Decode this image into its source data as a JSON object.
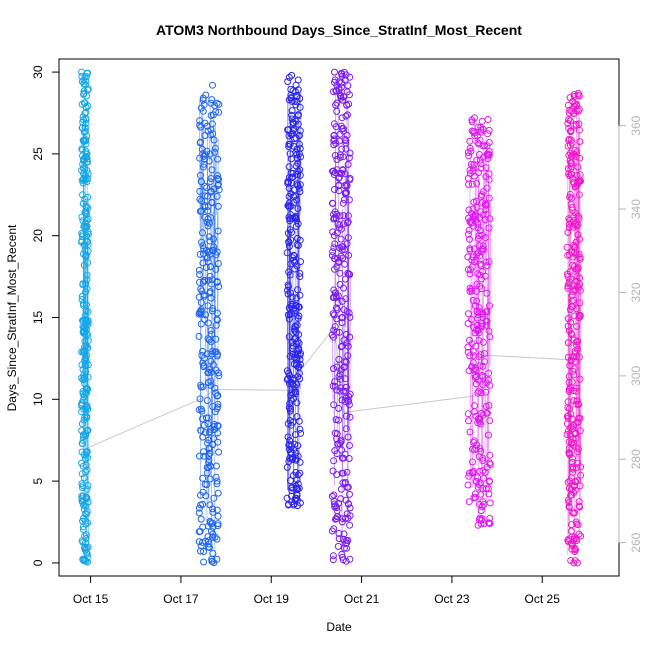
{
  "chart_data": {
    "type": "scatter",
    "title": "ATOM3 Northbound Days_Since_StratInf_Most_Recent",
    "xlabel": "Date",
    "ylabel": "Days_Since_StratInf_Most_Recent",
    "x_ticks": [
      "Oct 15",
      "Oct 17",
      "Oct 19",
      "Oct 21",
      "Oct 23",
      "Oct 25"
    ],
    "x_tick_values": [
      15,
      17,
      19,
      21,
      23,
      25
    ],
    "xlim": [
      14.3,
      26.7
    ],
    "y_ticks": [
      "0",
      "5",
      "10",
      "15",
      "20",
      "25",
      "30"
    ],
    "y_tick_values": [
      0,
      5,
      10,
      15,
      20,
      25,
      30
    ],
    "ylim": [
      -0.8,
      30.8
    ],
    "y2_ticks": [
      "260",
      "280",
      "300",
      "320",
      "340",
      "360"
    ],
    "y2_tick_values": [
      260,
      280,
      300,
      320,
      340,
      360
    ],
    "y2lim": [
      252,
      376
    ],
    "grid": false,
    "marker": "open circle",
    "color_scale": "cyan to blue to purple to magenta over time",
    "series": [
      {
        "x_range": [
          14.8,
          14.95
        ],
        "y_range": [
          0,
          30
        ],
        "color": "#15a6e8",
        "points": [
          [
            14.8,
            30
          ],
          [
            14.85,
            28.7
          ],
          [
            14.9,
            27.1
          ],
          [
            14.8,
            24
          ],
          [
            14.88,
            23.4
          ],
          [
            14.82,
            22.5
          ],
          [
            14.9,
            21.8
          ],
          [
            14.95,
            20.1
          ],
          [
            14.8,
            19.6
          ],
          [
            14.86,
            18.2
          ],
          [
            14.92,
            17.3
          ],
          [
            14.81,
            16.1
          ],
          [
            14.9,
            15.4
          ],
          [
            14.84,
            14.8
          ],
          [
            14.95,
            13.6
          ],
          [
            14.8,
            12.9
          ],
          [
            14.88,
            12.1
          ],
          [
            14.83,
            11.2
          ],
          [
            14.91,
            10.4
          ],
          [
            14.8,
            9.6
          ],
          [
            14.87,
            8.9
          ],
          [
            14.94,
            8.1
          ],
          [
            14.82,
            7.3
          ],
          [
            14.9,
            6.6
          ],
          [
            14.8,
            6.1
          ],
          [
            14.86,
            5.2
          ],
          [
            14.92,
            4.5
          ],
          [
            14.81,
            3.8
          ],
          [
            14.88,
            3
          ],
          [
            14.84,
            2.2
          ],
          [
            14.9,
            1.5
          ],
          [
            14.87,
            0.9
          ],
          [
            14.9,
            0.1
          ],
          [
            14.93,
            0.05
          ]
        ]
      },
      {
        "x_range": [
          17.4,
          17.85
        ],
        "y_range": [
          0,
          29.2
        ],
        "color": "#1e64f0",
        "points": [
          [
            17.45,
            27.8
          ],
          [
            17.55,
            28.6
          ],
          [
            17.7,
            29.2
          ],
          [
            17.8,
            28.1
          ],
          [
            17.6,
            26.4
          ],
          [
            17.75,
            25.1
          ],
          [
            17.5,
            24.2
          ],
          [
            17.65,
            23.3
          ],
          [
            17.8,
            22.4
          ],
          [
            17.45,
            21.5
          ],
          [
            17.6,
            20.6
          ],
          [
            17.72,
            19.8
          ],
          [
            17.5,
            18.9
          ],
          [
            17.66,
            18.1
          ],
          [
            17.8,
            17.2
          ],
          [
            17.52,
            16.3
          ],
          [
            17.7,
            15.4
          ],
          [
            17.45,
            14.6
          ],
          [
            17.6,
            13.7
          ],
          [
            17.78,
            12.9
          ],
          [
            17.5,
            12
          ],
          [
            17.66,
            11.1
          ],
          [
            17.8,
            10.2
          ],
          [
            17.45,
            9.4
          ],
          [
            17.6,
            8.5
          ],
          [
            17.72,
            7.6
          ],
          [
            17.5,
            6.8
          ],
          [
            17.65,
            5.9
          ],
          [
            17.8,
            5
          ],
          [
            17.55,
            4.1
          ],
          [
            17.7,
            3.3
          ],
          [
            17.82,
            2.4
          ],
          [
            17.6,
            1.6
          ],
          [
            17.5,
            0.7
          ],
          [
            17.7,
            0.1
          ]
        ]
      },
      {
        "x_range": [
          19.35,
          19.65
        ],
        "y_range": [
          3.5,
          29.8
        ],
        "color": "#2a24ee",
        "points": [
          [
            19.45,
            29.8
          ],
          [
            19.55,
            29.2
          ],
          [
            19.4,
            28.3
          ],
          [
            19.6,
            27.4
          ],
          [
            19.5,
            26.5
          ],
          [
            19.42,
            25.6
          ],
          [
            19.58,
            24.7
          ],
          [
            19.48,
            23.8
          ],
          [
            19.62,
            22.9
          ],
          [
            19.4,
            22
          ],
          [
            19.55,
            21.1
          ],
          [
            19.45,
            20.2
          ],
          [
            19.6,
            19.4
          ],
          [
            19.5,
            18.5
          ],
          [
            19.42,
            17.6
          ],
          [
            19.58,
            16.7
          ],
          [
            19.48,
            15.8
          ],
          [
            19.4,
            14.9
          ],
          [
            19.55,
            14.1
          ],
          [
            19.45,
            10.4
          ],
          [
            19.4,
            9.5
          ],
          [
            19.42,
            8.7
          ],
          [
            19.58,
            3.5
          ]
        ]
      },
      {
        "x_range": [
          20.35,
          20.75
        ],
        "y_range": [
          0.1,
          30
        ],
        "color": "#7a1cf0",
        "points": [
          [
            20.4,
            30
          ],
          [
            20.5,
            29.4
          ],
          [
            20.6,
            28.5
          ],
          [
            20.45,
            27.6
          ],
          [
            20.55,
            26.7
          ],
          [
            20.65,
            25.8
          ],
          [
            20.42,
            24.9
          ],
          [
            20.58,
            24
          ],
          [
            20.5,
            23.1
          ],
          [
            20.62,
            22.2
          ],
          [
            20.45,
            21.3
          ],
          [
            20.55,
            20.4
          ],
          [
            20.68,
            19.5
          ],
          [
            20.4,
            18.6
          ],
          [
            20.52,
            17.7
          ],
          [
            20.6,
            16.8
          ],
          [
            20.48,
            15.9
          ],
          [
            20.58,
            15
          ],
          [
            20.45,
            14.1
          ],
          [
            20.55,
            13.2
          ],
          [
            20.62,
            12.3
          ],
          [
            20.5,
            11.4
          ],
          [
            20.6,
            10.5
          ],
          [
            20.66,
            8.2
          ],
          [
            20.52,
            7.3
          ],
          [
            20.6,
            6.4
          ],
          [
            20.45,
            5.4
          ],
          [
            20.55,
            4.5
          ],
          [
            20.4,
            3.6
          ],
          [
            20.58,
            2.7
          ],
          [
            20.5,
            1.8
          ],
          [
            20.62,
            0.9
          ],
          [
            20.66,
            0.1
          ]
        ]
      },
      {
        "x_range": [
          23.35,
          23.85
        ],
        "y_range": [
          2.3,
          27.2
        ],
        "color": "#de18f2",
        "points": [
          [
            23.5,
            27.2
          ],
          [
            23.8,
            27.1
          ],
          [
            23.45,
            26.4
          ],
          [
            23.6,
            25.6
          ],
          [
            23.7,
            24.8
          ],
          [
            23.4,
            24
          ],
          [
            23.55,
            23.2
          ],
          [
            23.65,
            22.4
          ],
          [
            23.75,
            21.6
          ],
          [
            23.45,
            20.8
          ],
          [
            23.6,
            20
          ],
          [
            23.7,
            19.2
          ],
          [
            23.5,
            18.4
          ],
          [
            23.62,
            17.6
          ],
          [
            23.4,
            16.8
          ],
          [
            23.55,
            16
          ],
          [
            23.68,
            15.2
          ],
          [
            23.48,
            14.4
          ],
          [
            23.6,
            13.6
          ],
          [
            23.72,
            12.8
          ],
          [
            23.45,
            12
          ],
          [
            23.58,
            11.2
          ],
          [
            23.65,
            10.4
          ],
          [
            23.5,
            9.6
          ],
          [
            23.62,
            8.8
          ],
          [
            23.4,
            8
          ],
          [
            23.55,
            7.2
          ],
          [
            23.68,
            6.4
          ],
          [
            23.48,
            5.6
          ],
          [
            23.6,
            4.8
          ],
          [
            23.52,
            4
          ],
          [
            23.65,
            3.2
          ],
          [
            23.58,
            2.3
          ]
        ]
      },
      {
        "x_range": [
          25.55,
          25.85
        ],
        "y_range": [
          0,
          28.7
        ],
        "color": "#f018cc",
        "points": [
          [
            25.8,
            28.7
          ],
          [
            25.65,
            27.6
          ],
          [
            25.75,
            26.8
          ],
          [
            25.6,
            25.9
          ],
          [
            25.7,
            25
          ],
          [
            25.58,
            24.1
          ],
          [
            25.78,
            23.2
          ],
          [
            25.65,
            22.3
          ],
          [
            25.72,
            21.4
          ],
          [
            25.6,
            20.5
          ],
          [
            25.75,
            19.6
          ],
          [
            25.68,
            18.7
          ],
          [
            25.62,
            17.8
          ],
          [
            25.78,
            16.9
          ],
          [
            25.66,
            16
          ],
          [
            25.72,
            15.1
          ],
          [
            25.6,
            14.2
          ],
          [
            25.76,
            13.3
          ],
          [
            25.64,
            12.4
          ],
          [
            25.7,
            11.5
          ],
          [
            25.6,
            10.6
          ],
          [
            25.75,
            9.7
          ],
          [
            25.66,
            8.8
          ],
          [
            25.72,
            7.9
          ],
          [
            25.6,
            7
          ],
          [
            25.78,
            6.1
          ],
          [
            25.65,
            5.2
          ],
          [
            25.7,
            4.3
          ],
          [
            25.6,
            3.4
          ],
          [
            25.75,
            2.5
          ],
          [
            25.66,
            1.6
          ],
          [
            25.72,
            0.7
          ],
          [
            25.7,
            0
          ],
          [
            25.78,
            0
          ]
        ]
      }
    ],
    "connector_line": {
      "color": "#c8c8c8",
      "points": [
        [
          14.9,
          7
        ],
        [
          17.5,
          10.1
        ],
        [
          17.75,
          10.6
        ],
        [
          19.45,
          10.55
        ],
        [
          19.6,
          11.6
        ],
        [
          20.4,
          14.4
        ],
        [
          20.6,
          9.2
        ],
        [
          23.5,
          10.2
        ],
        [
          23.7,
          12.7
        ],
        [
          25.7,
          12.4
        ]
      ]
    }
  }
}
